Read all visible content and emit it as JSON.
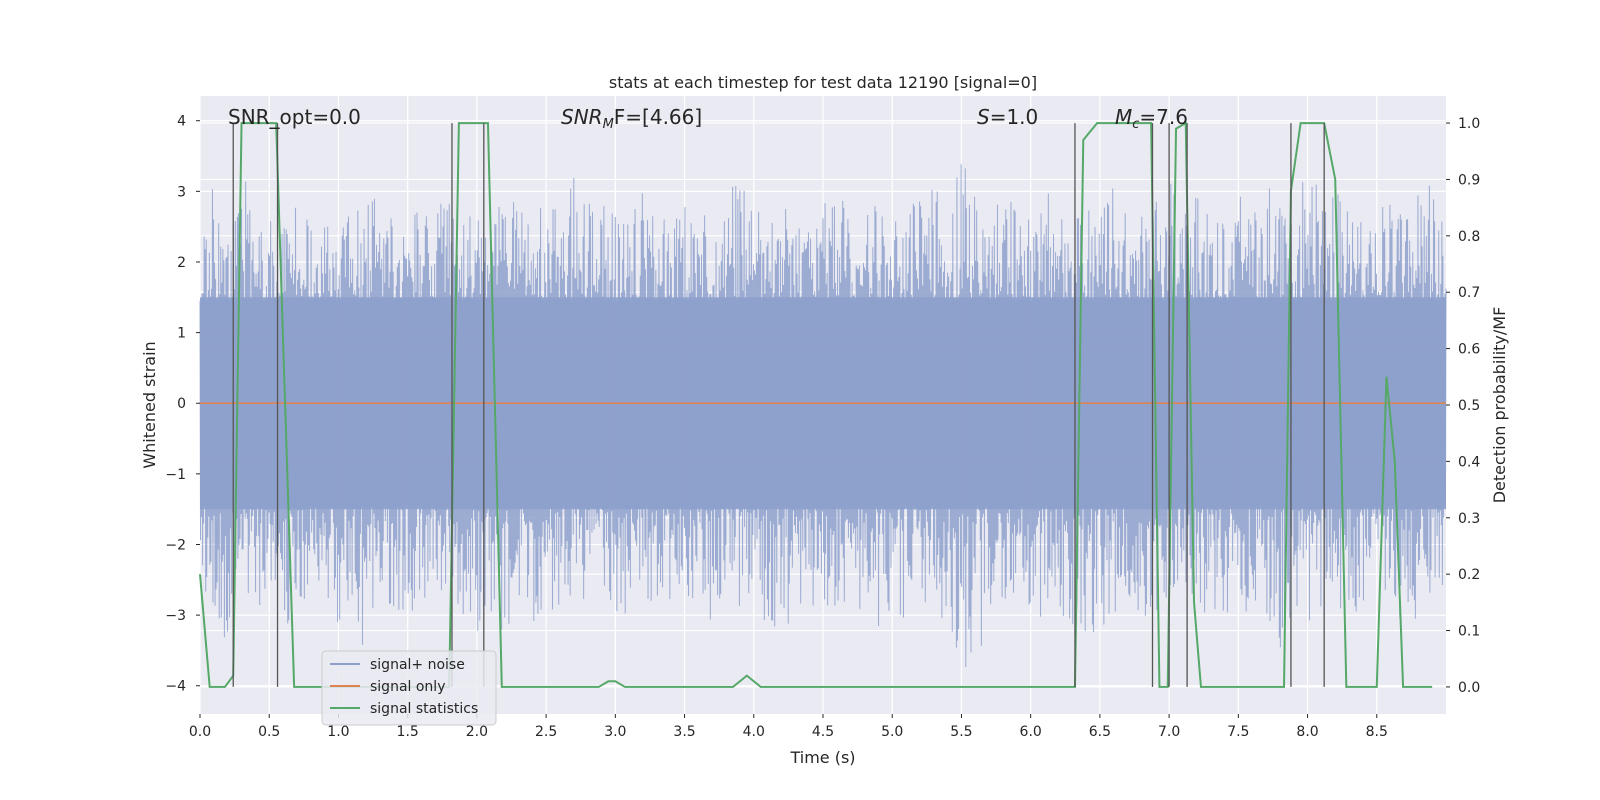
{
  "chart_data": {
    "type": "line",
    "title": "stats at each timestep for test data 12190 [signal=0]",
    "xlabel": "Time (s)",
    "ylabel_left": "Whitened strain",
    "ylabel_right": "Detection probability/MF",
    "xlim": [
      0.0,
      9.0
    ],
    "ylim_left": [
      -4.4,
      4.35
    ],
    "ylim_right": [
      -0.048,
      1.048
    ],
    "grid": true,
    "x_ticks": [
      "0.0",
      "0.5",
      "1.0",
      "1.5",
      "2.0",
      "2.5",
      "3.0",
      "3.5",
      "4.0",
      "4.5",
      "5.0",
      "5.5",
      "6.0",
      "6.5",
      "7.0",
      "7.5",
      "8.0",
      "8.5"
    ],
    "x_tick_values": [
      0.0,
      0.5,
      1.0,
      1.5,
      2.0,
      2.5,
      3.0,
      3.5,
      4.0,
      4.5,
      5.0,
      5.5,
      6.0,
      6.5,
      7.0,
      7.5,
      8.0,
      8.5
    ],
    "y_left_ticks": [
      "4",
      "3",
      "2",
      "1",
      "0",
      "−1",
      "−2",
      "−3",
      "−4"
    ],
    "y_left_tick_values": [
      4,
      3,
      2,
      1,
      0,
      -1,
      -2,
      -3,
      -4
    ],
    "y_right_ticks": [
      "1.0",
      "0.9",
      "0.8",
      "0.7",
      "0.6",
      "0.5",
      "0.4",
      "0.3",
      "0.2",
      "0.1",
      "0.0"
    ],
    "y_right_tick_values": [
      1.0,
      0.9,
      0.8,
      0.7,
      0.6,
      0.5,
      0.4,
      0.3,
      0.2,
      0.1,
      0.0
    ],
    "annotations": {
      "snr_opt": "SNR_opt=0.0",
      "snr_mf_label": "SNR",
      "snr_mf_sub": "M",
      "snr_mf_rest": "F=[4.66]",
      "s_label": "S",
      "s_rest": "=1.0",
      "mc_label": "M",
      "mc_sub": "c",
      "mc_rest": "=7.6"
    },
    "legend": {
      "position": "lower-left",
      "entries": [
        "signal+ noise",
        "signal only",
        "signal statistics"
      ]
    },
    "colors": {
      "noise": "#8da0cb",
      "signal": "#dd8452",
      "statistics": "#55a868",
      "vlines": "#555555",
      "plot_bg": "#eaeaf2",
      "grid": "#ffffff"
    },
    "series": [
      {
        "name": "signal+ noise",
        "axis": "left",
        "description": "whitened strain noise; approx. envelope (+ and -) over time",
        "envelope_x": [
          0.0,
          0.1,
          0.2,
          0.3,
          0.4,
          0.5,
          0.6,
          0.7,
          0.8,
          0.9,
          1.0,
          1.1,
          1.2,
          1.3,
          1.4,
          1.5,
          1.6,
          1.7,
          1.8,
          1.9,
          2.0,
          2.1,
          2.2,
          2.3,
          2.4,
          2.5,
          2.6,
          2.7,
          2.8,
          2.9,
          3.0,
          3.1,
          3.2,
          3.3,
          3.4,
          3.5,
          3.6,
          3.7,
          3.8,
          3.9,
          4.0,
          4.1,
          4.2,
          4.3,
          4.4,
          4.5,
          4.6,
          4.7,
          4.8,
          4.9,
          5.0,
          5.1,
          5.2,
          5.3,
          5.4,
          5.5,
          5.6,
          5.7,
          5.8,
          5.9,
          6.0,
          6.1,
          6.2,
          6.3,
          6.4,
          6.5,
          6.6,
          6.7,
          6.8,
          6.9,
          7.0,
          7.1,
          7.2,
          7.3,
          7.4,
          7.5,
          7.6,
          7.7,
          7.8,
          7.9,
          8.0,
          8.1,
          8.2,
          8.3,
          8.4,
          8.5,
          8.6,
          8.7,
          8.8,
          8.9,
          9.0
        ],
        "envelope_max": [
          2.6,
          3.1,
          2.5,
          3.4,
          2.9,
          2.7,
          2.5,
          3.0,
          2.7,
          2.6,
          2.8,
          2.6,
          3.4,
          2.7,
          2.8,
          2.6,
          2.9,
          2.7,
          3.1,
          2.8,
          2.7,
          2.6,
          3.0,
          2.8,
          2.6,
          2.9,
          2.7,
          3.2,
          2.9,
          3.0,
          2.8,
          2.9,
          3.3,
          2.7,
          2.6,
          2.9,
          2.8,
          2.7,
          3.0,
          3.2,
          2.9,
          2.8,
          3.0,
          2.7,
          2.6,
          2.9,
          3.0,
          2.8,
          2.6,
          3.1,
          2.7,
          2.8,
          2.9,
          3.1,
          2.7,
          3.5,
          3.0,
          2.9,
          3.1,
          2.8,
          2.6,
          3.1,
          3.0,
          2.8,
          2.7,
          3.0,
          3.2,
          2.8,
          2.7,
          3.0,
          3.2,
          2.9,
          3.1,
          2.7,
          2.8,
          3.0,
          2.7,
          3.2,
          2.8,
          2.9,
          3.4,
          3.1,
          3.2,
          2.7,
          3.0,
          2.8,
          2.9,
          3.0,
          3.0,
          3.2,
          2.6
        ],
        "envelope_min": [
          -2.5,
          -2.9,
          -3.6,
          -2.8,
          -3.2,
          -2.7,
          -3.0,
          -3.7,
          -2.8,
          -2.9,
          -3.4,
          -3.1,
          -3.6,
          -2.9,
          -3.0,
          -3.1,
          -2.8,
          -2.7,
          -3.2,
          -3.0,
          -3.4,
          -3.0,
          -3.3,
          -2.9,
          -3.2,
          -2.9,
          -3.1,
          -3.0,
          -3.0,
          -2.8,
          -3.2,
          -2.9,
          -2.8,
          -3.1,
          -2.9,
          -3.0,
          -2.9,
          -3.1,
          -3.0,
          -3.1,
          -2.9,
          -3.2,
          -3.3,
          -3.0,
          -2.9,
          -2.8,
          -3.0,
          -3.1,
          -3.0,
          -3.2,
          -3.0,
          -3.2,
          -2.9,
          -3.1,
          -3.1,
          -3.7,
          -3.9,
          -3.2,
          -3.0,
          -2.9,
          -3.0,
          -3.1,
          -3.0,
          -3.2,
          -3.6,
          -3.4,
          -3.1,
          -2.9,
          -3.0,
          -3.1,
          -3.2,
          -3.0,
          -2.9,
          -3.1,
          -3.0,
          -2.9,
          -3.1,
          -3.0,
          -3.7,
          -2.8,
          -3.2,
          -3.0,
          -2.8,
          -3.1,
          -2.9,
          -3.0,
          -2.9,
          -3.3,
          -3.0,
          -2.8,
          -2.5
        ]
      },
      {
        "name": "signal only",
        "axis": "left",
        "x": [
          0.0,
          9.0
        ],
        "values": [
          0.0,
          0.0
        ]
      },
      {
        "name": "signal statistics",
        "axis": "right",
        "x": [
          0.0,
          0.07,
          0.18,
          0.24,
          0.3,
          0.55,
          0.68,
          1.8,
          1.87,
          2.08,
          2.18,
          2.88,
          2.95,
          3.0,
          3.07,
          3.85,
          3.95,
          4.05,
          6.32,
          6.38,
          6.48,
          6.87,
          6.93,
          6.99,
          7.05,
          7.12,
          7.18,
          7.23,
          7.83,
          7.88,
          7.95,
          8.12,
          8.2,
          8.28,
          8.5,
          8.57,
          8.63,
          8.69,
          8.9
        ],
        "values": [
          0.2,
          0.0,
          0.0,
          0.02,
          1.0,
          1.0,
          0.0,
          0.0,
          1.0,
          1.0,
          0.0,
          0.0,
          0.01,
          0.01,
          0.0,
          0.0,
          0.02,
          0.0,
          0.0,
          0.97,
          1.0,
          1.0,
          0.0,
          0.0,
          0.99,
          1.0,
          0.15,
          0.0,
          0.0,
          0.88,
          1.0,
          1.0,
          0.9,
          0.0,
          0.0,
          0.55,
          0.4,
          0.0,
          0.0
        ]
      }
    ],
    "vertical_lines_x": [
      0.24,
      0.56,
      1.82,
      2.05,
      6.32,
      6.88,
      7.0,
      7.13,
      7.88,
      8.12
    ]
  }
}
